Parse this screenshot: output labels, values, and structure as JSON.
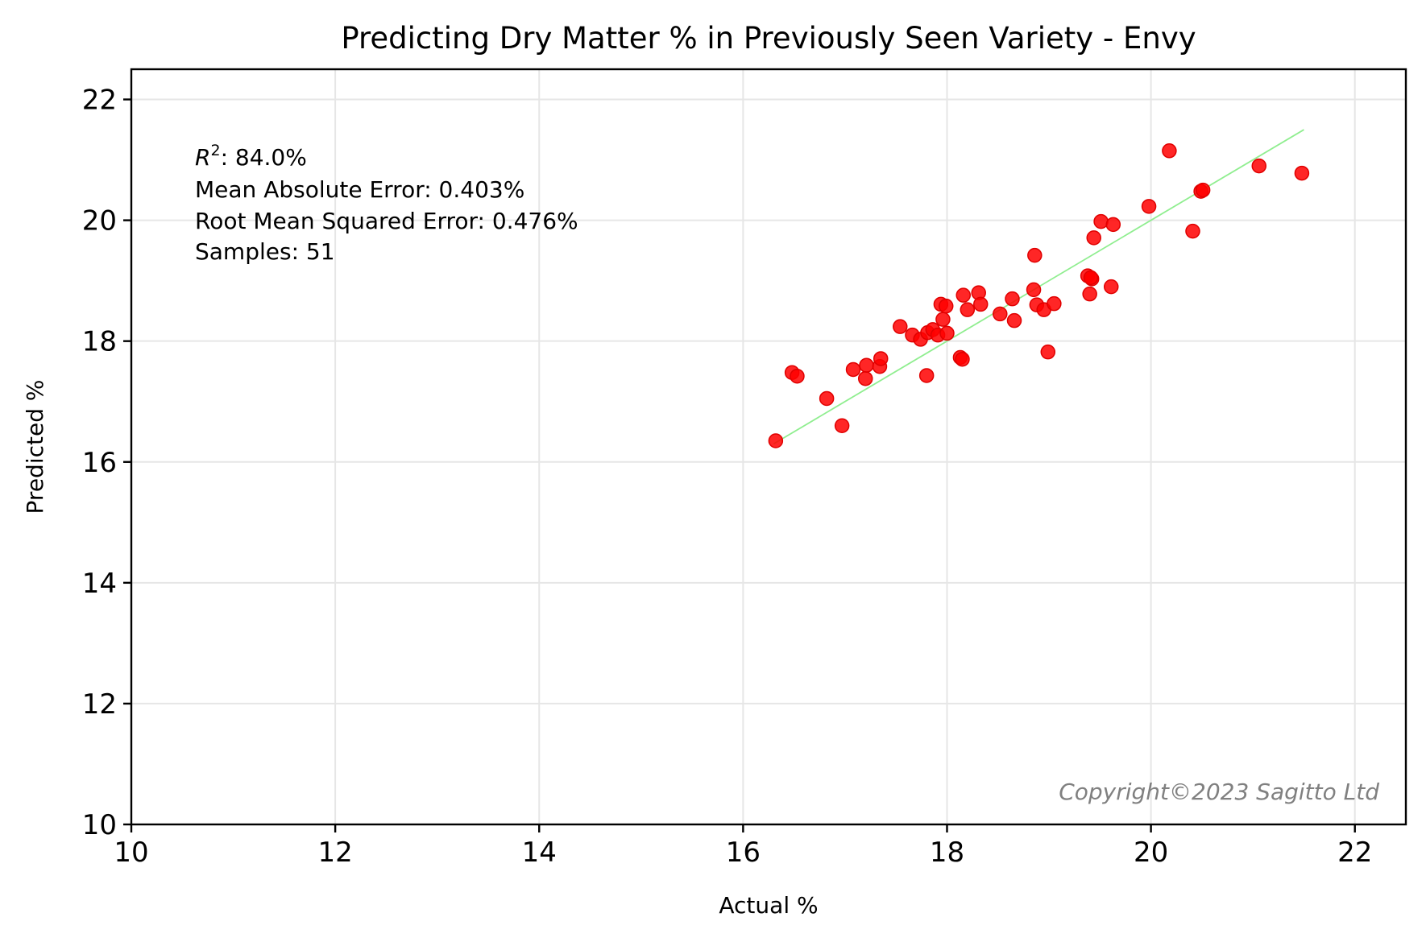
{
  "chart_data": {
    "type": "scatter",
    "title": "Predicting Dry Matter % in Previously Seen Variety - Envy",
    "xlabel": "Actual %",
    "ylabel": "Predicted %",
    "xlim": [
      10,
      22.5
    ],
    "ylim": [
      10,
      22.5
    ],
    "xticks": [
      10,
      12,
      14,
      16,
      18,
      20,
      22
    ],
    "yticks": [
      10,
      12,
      14,
      16,
      18,
      20,
      22
    ],
    "grid": true,
    "point_color": "#ff0000",
    "fit_line_color": "#90ee90",
    "fit_line": {
      "x": [
        16.3,
        21.5
      ],
      "y": [
        16.3,
        21.5
      ]
    },
    "stats": {
      "r2_label": "R",
      "r2_sup": "2",
      "r2_value": ": 84.0%",
      "mae": "Mean Absolute Error: 0.403%",
      "rmse": "Root Mean Squared Error: 0.476%",
      "samples": "Samples: 51"
    },
    "watermark": "Copyright©2023  Sagitto  Ltd",
    "points": [
      [
        16.32,
        16.35
      ],
      [
        16.48,
        17.48
      ],
      [
        16.53,
        17.42
      ],
      [
        16.82,
        17.05
      ],
      [
        16.97,
        16.6
      ],
      [
        17.08,
        17.53
      ],
      [
        17.2,
        17.38
      ],
      [
        17.21,
        17.6
      ],
      [
        17.34,
        17.58
      ],
      [
        17.35,
        17.71
      ],
      [
        17.54,
        18.24
      ],
      [
        17.66,
        18.1
      ],
      [
        17.74,
        18.03
      ],
      [
        17.8,
        17.43
      ],
      [
        17.81,
        18.14
      ],
      [
        17.86,
        18.19
      ],
      [
        17.91,
        18.1
      ],
      [
        17.94,
        18.61
      ],
      [
        17.96,
        18.36
      ],
      [
        17.99,
        18.58
      ],
      [
        18.0,
        18.13
      ],
      [
        18.13,
        17.73
      ],
      [
        18.15,
        17.7
      ],
      [
        18.16,
        18.76
      ],
      [
        18.2,
        18.52
      ],
      [
        18.31,
        18.8
      ],
      [
        18.33,
        18.61
      ],
      [
        18.52,
        18.45
      ],
      [
        18.64,
        18.7
      ],
      [
        18.66,
        18.34
      ],
      [
        18.85,
        18.85
      ],
      [
        18.86,
        19.42
      ],
      [
        18.88,
        18.6
      ],
      [
        18.95,
        18.52
      ],
      [
        18.99,
        17.82
      ],
      [
        19.05,
        18.62
      ],
      [
        19.38,
        19.08
      ],
      [
        19.4,
        18.78
      ],
      [
        19.42,
        19.03
      ],
      [
        19.44,
        19.71
      ],
      [
        19.51,
        19.98
      ],
      [
        19.61,
        18.9
      ],
      [
        19.63,
        19.93
      ],
      [
        19.98,
        20.23
      ],
      [
        20.18,
        21.15
      ],
      [
        20.41,
        19.82
      ],
      [
        20.49,
        20.48
      ],
      [
        20.51,
        20.5
      ],
      [
        21.06,
        20.9
      ],
      [
        21.48,
        20.78
      ],
      [
        19.41,
        19.05
      ]
    ]
  }
}
